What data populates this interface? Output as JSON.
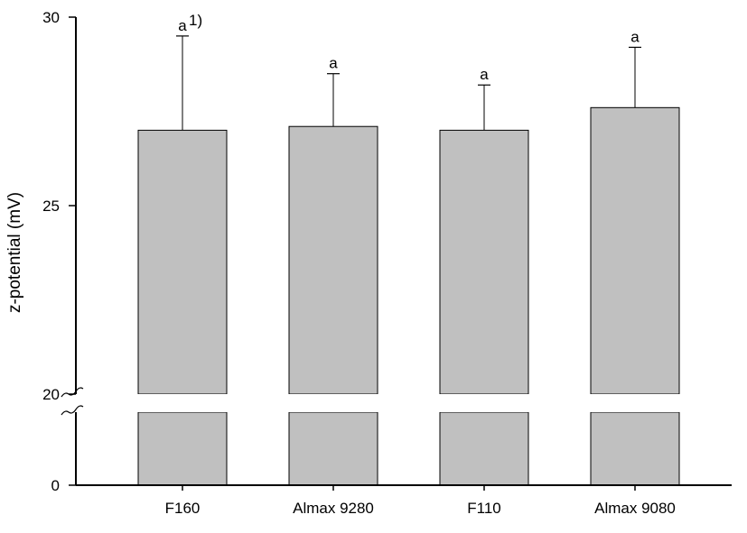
{
  "chart_data": {
    "type": "bar",
    "title": "",
    "xlabel": "",
    "ylabel": "z-potential (mV)",
    "categories": [
      "F160",
      "Almax 9280",
      "F110",
      "Almax 9080"
    ],
    "values": [
      27.0,
      27.1,
      27.0,
      27.6
    ],
    "error_upper": [
      29.5,
      28.5,
      28.2,
      29.2
    ],
    "significance": [
      "a",
      "a",
      "a",
      "a"
    ],
    "footnote_marker": "1)",
    "y_ticks": [
      "0",
      "20",
      "25",
      "30"
    ],
    "y_axis_break": "between 0 and 20",
    "upper_segment_ylim": [
      20,
      30
    ],
    "bar_color": "#c0c0c0",
    "grid": false,
    "legend": "none"
  }
}
